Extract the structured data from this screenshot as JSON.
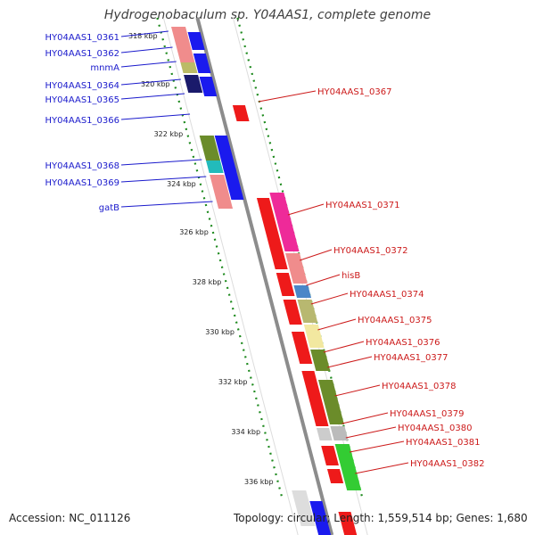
{
  "title": "Hydrogenobaculum sp. Y04AAS1, complete genome",
  "footer": {
    "accession": "Accession: NC_011126",
    "topology": "Topology: circular; Length: 1,559,514 bp; Genes: 1,680"
  },
  "colors": {
    "left_labels": "#1a1acc",
    "right_labels": "#cc1a1a",
    "tick_dots": "#1e8a1e",
    "backbone": "#8c8c8c"
  },
  "ticks": [
    "318 kbp",
    "320 kbp",
    "322 kbp",
    "324 kbp",
    "326 kbp",
    "328 kbp",
    "330 kbp",
    "332 kbp",
    "334 kbp",
    "336 kbp"
  ],
  "left_genes": [
    "HY04AAS1_0361",
    "HY04AAS1_0362",
    "mnmA",
    "HY04AAS1_0364",
    "HY04AAS1_0365",
    "HY04AAS1_0366",
    "HY04AAS1_0368",
    "HY04AAS1_0369",
    "gatB"
  ],
  "right_genes": [
    "HY04AAS1_0367",
    "HY04AAS1_0371",
    "HY04AAS1_0372",
    "hisB",
    "HY04AAS1_0374",
    "HY04AAS1_0375",
    "HY04AAS1_0376",
    "HY04AAS1_0377",
    "HY04AAS1_0378",
    "HY04AAS1_0379",
    "HY04AAS1_0380",
    "HY04AAS1_0381",
    "HY04AAS1_0382"
  ]
}
